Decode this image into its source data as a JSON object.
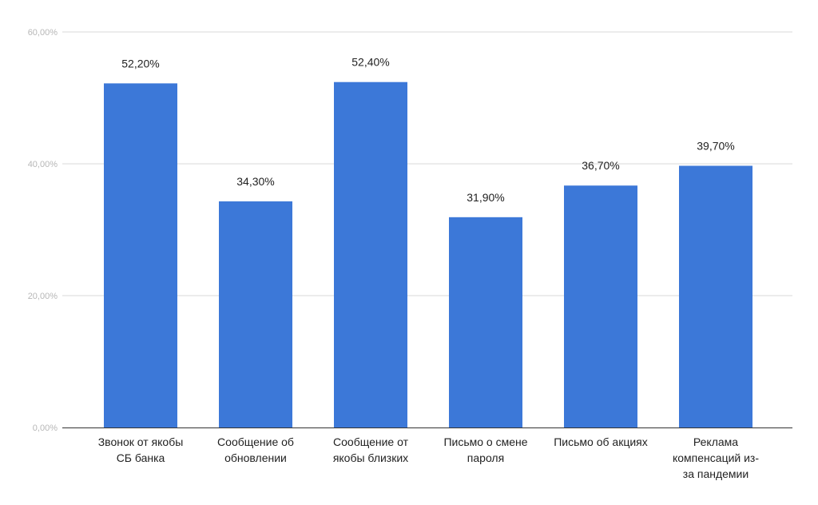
{
  "chart_data": {
    "type": "bar",
    "title": "",
    "xlabel": "",
    "ylabel": "",
    "categories": [
      "Звонок от якобы\nСБ банка",
      "Сообщение об\nобновлении",
      "Сообщение от\nякобы близких",
      "Письмо о смене\nпароля",
      "Письмо об акциях",
      "Реклама\nкомпенсаций из-\nза пандемии"
    ],
    "values": [
      52.2,
      34.3,
      52.4,
      31.9,
      36.7,
      39.7
    ],
    "data_labels": [
      "52,20%",
      "34,30%",
      "52,40%",
      "31,90%",
      "36,70%",
      "39,70%"
    ],
    "ylim": [
      0,
      60
    ],
    "yticks": [
      0,
      20,
      40,
      60
    ],
    "ytick_labels": [
      "0,00%",
      "20,00%",
      "40,00%",
      "60,00%"
    ],
    "grid": true,
    "legend": "none",
    "colors": {
      "bar": "#3c78d8",
      "grid": "#d9d9d9",
      "axis": "#333333",
      "tick_text": "#b7b7b7",
      "label_text": "#222222"
    }
  }
}
